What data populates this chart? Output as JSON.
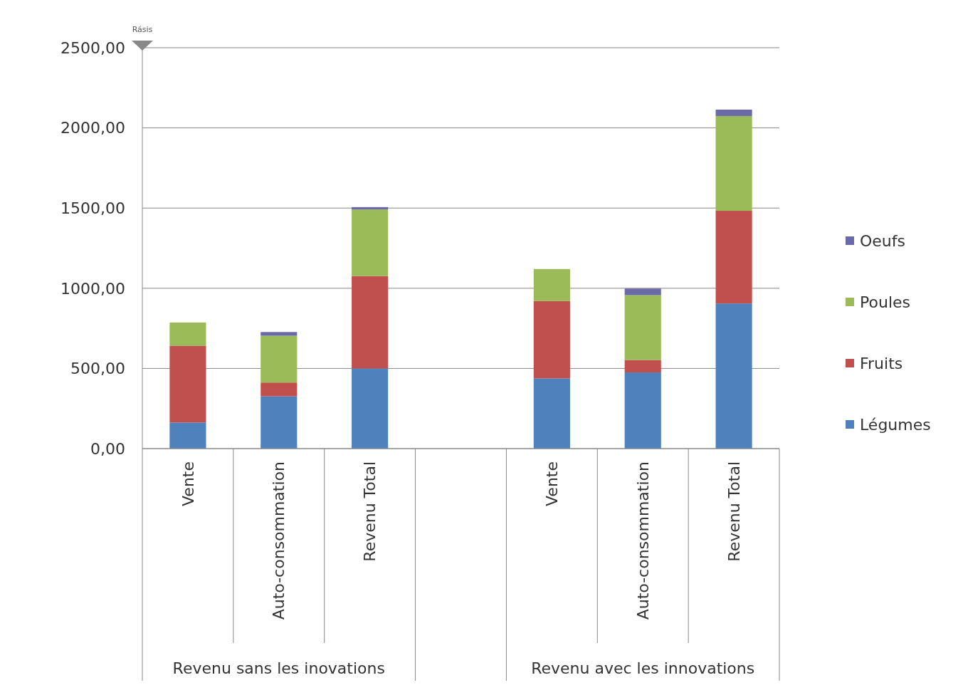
{
  "chart_data": {
    "type": "bar",
    "stacked": true,
    "categories": [
      "Vente",
      "Auto-consommation",
      "Revenu Total",
      null,
      "Vente",
      "Auto-consommation",
      "Revenu Total"
    ],
    "series": [
      {
        "name": "Légumes",
        "color": "#4f81bd",
        "values": [
          163,
          326,
          500,
          null,
          438,
          475,
          905
        ]
      },
      {
        "name": "Fruits",
        "color": "#c0504d",
        "values": [
          479,
          86,
          576,
          null,
          482,
          78,
          578
        ]
      },
      {
        "name": "Poules",
        "color": "#9bbb59",
        "values": [
          144,
          292,
          415,
          null,
          200,
          404,
          591
        ]
      },
      {
        "name": "Oeufs",
        "color": "#6a6aa8",
        "values": [
          0,
          23,
          15,
          null,
          0,
          41,
          40
        ]
      }
    ],
    "ylim": [
      0,
      2500
    ],
    "yticks": [
      {
        "value": 0,
        "label": "0,00"
      },
      {
        "value": 500,
        "label": "500,00"
      },
      {
        "value": 1000,
        "label": "1000,00"
      },
      {
        "value": 1500,
        "label": "1500,00"
      },
      {
        "value": 2000,
        "label": "2000,00"
      },
      {
        "value": 2500,
        "label": "2500,00"
      }
    ],
    "grid": "y",
    "legend": "right",
    "annotations": [
      "Revenu sans les inovations",
      "Revenu avec les innovations",
      "Rásis"
    ]
  }
}
